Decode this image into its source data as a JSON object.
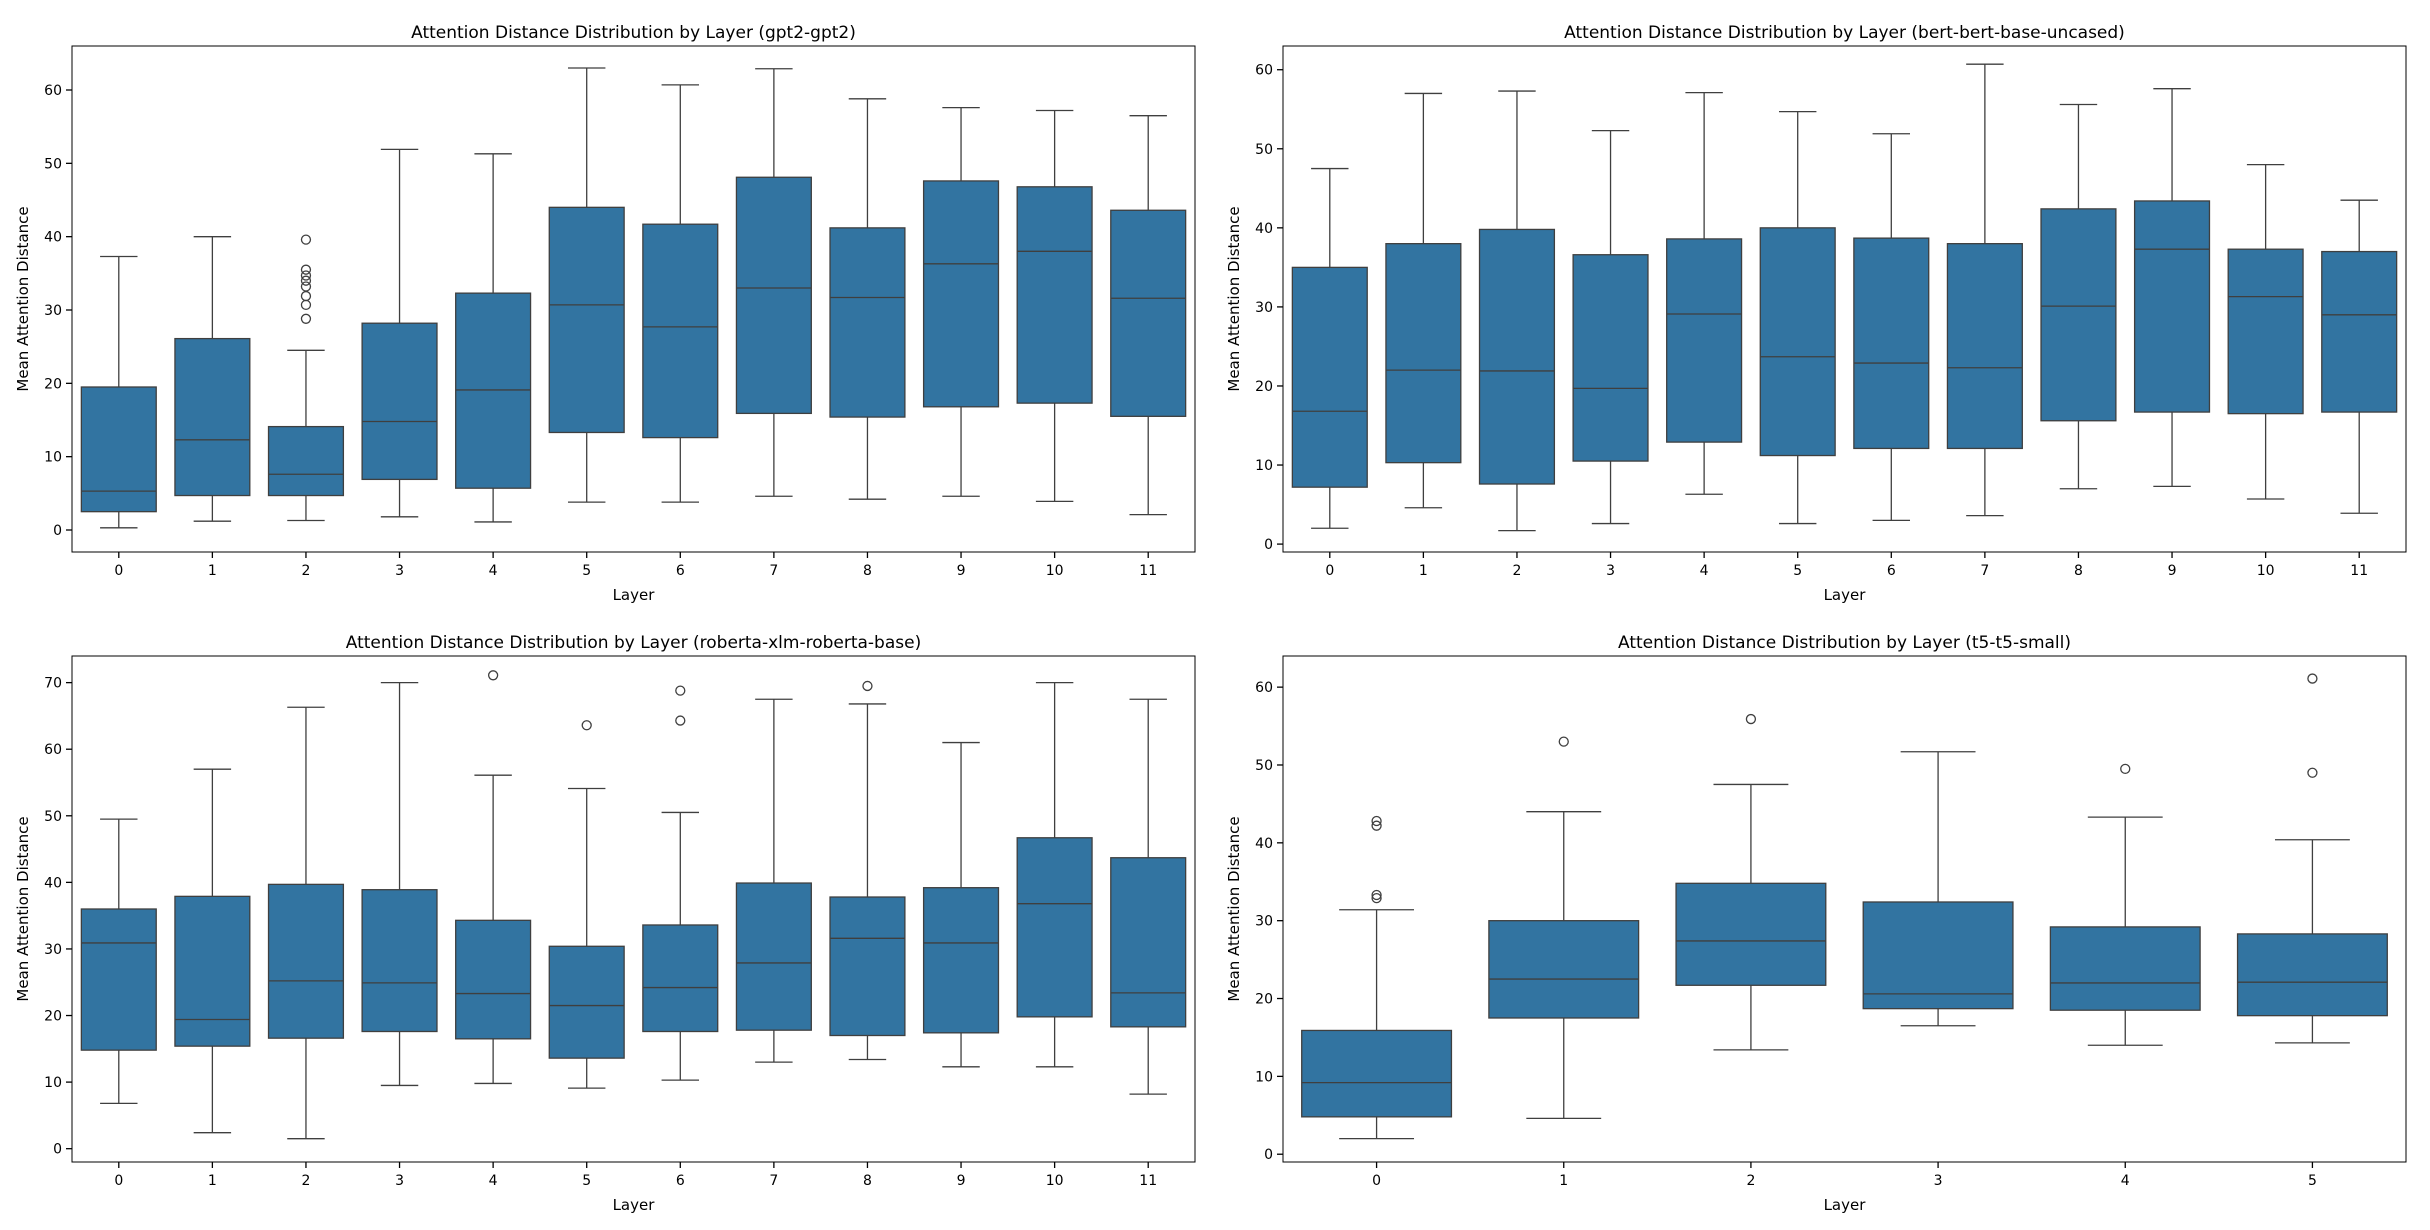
{
  "chart_data": [
    {
      "type": "box",
      "title": "Attention Distance Distribution by Layer (gpt2-gpt2)",
      "xlabel": "Layer",
      "ylabel": "Mean Attention Distance",
      "ylim": [
        -3,
        66
      ],
      "yticks": [
        0,
        10,
        20,
        30,
        40,
        50,
        60
      ],
      "categories": [
        "0",
        "1",
        "2",
        "3",
        "4",
        "5",
        "6",
        "7",
        "8",
        "9",
        "10",
        "11"
      ],
      "boxes": [
        {
          "layer": "0",
          "low": 0.3,
          "q1": 2.5,
          "median": 5.3,
          "q3": 19.5,
          "high": 37.3,
          "outliers": []
        },
        {
          "layer": "1",
          "low": 1.2,
          "q1": 4.7,
          "median": 12.3,
          "q3": 26.1,
          "high": 40.0,
          "outliers": []
        },
        {
          "layer": "2",
          "low": 1.3,
          "q1": 4.7,
          "median": 7.6,
          "q3": 14.1,
          "high": 24.5,
          "outliers": [
            39.6,
            35.5,
            34.7,
            34.0,
            33.2,
            31.9,
            30.7,
            28.8
          ]
        },
        {
          "layer": "3",
          "low": 1.8,
          "q1": 6.9,
          "median": 14.8,
          "q3": 28.2,
          "high": 51.9,
          "outliers": []
        },
        {
          "layer": "4",
          "low": 1.1,
          "q1": 5.7,
          "median": 19.1,
          "q3": 32.3,
          "high": 51.3,
          "outliers": []
        },
        {
          "layer": "5",
          "low": 3.8,
          "q1": 13.3,
          "median": 30.7,
          "q3": 44.0,
          "high": 63.0,
          "outliers": []
        },
        {
          "layer": "6",
          "low": 3.8,
          "q1": 12.6,
          "median": 27.7,
          "q3": 41.7,
          "high": 60.7,
          "outliers": []
        },
        {
          "layer": "7",
          "low": 4.6,
          "q1": 15.9,
          "median": 33.0,
          "q3": 48.1,
          "high": 62.9,
          "outliers": []
        },
        {
          "layer": "8",
          "low": 4.2,
          "q1": 15.4,
          "median": 31.7,
          "q3": 41.2,
          "high": 58.8,
          "outliers": []
        },
        {
          "layer": "9",
          "low": 4.6,
          "q1": 16.8,
          "median": 36.3,
          "q3": 47.6,
          "high": 57.6,
          "outliers": []
        },
        {
          "layer": "10",
          "low": 3.9,
          "q1": 17.3,
          "median": 38.0,
          "q3": 46.8,
          "high": 57.2,
          "outliers": []
        },
        {
          "layer": "11",
          "low": 2.1,
          "q1": 15.5,
          "median": 31.6,
          "q3": 43.6,
          "high": 56.5,
          "outliers": []
        }
      ]
    },
    {
      "type": "box",
      "title": "Attention Distance Distribution by Layer (bert-bert-base-uncased)",
      "xlabel": "Layer",
      "ylabel": "Mean Attention Distance",
      "ylim": [
        -1,
        63
      ],
      "yticks": [
        0,
        10,
        20,
        30,
        40,
        50,
        60
      ],
      "categories": [
        "0",
        "1",
        "2",
        "3",
        "4",
        "5",
        "6",
        "7",
        "8",
        "9",
        "10",
        "11"
      ],
      "boxes": [
        {
          "layer": "0",
          "low": 2.0,
          "q1": 7.2,
          "median": 16.8,
          "q3": 35.0,
          "high": 47.5,
          "outliers": []
        },
        {
          "layer": "1",
          "low": 4.6,
          "q1": 10.3,
          "median": 22.0,
          "q3": 38.0,
          "high": 57.0,
          "outliers": []
        },
        {
          "layer": "2",
          "low": 1.7,
          "q1": 7.6,
          "median": 21.9,
          "q3": 39.8,
          "high": 57.3,
          "outliers": []
        },
        {
          "layer": "3",
          "low": 2.6,
          "q1": 10.5,
          "median": 19.7,
          "q3": 36.6,
          "high": 52.3,
          "outliers": []
        },
        {
          "layer": "4",
          "low": 6.3,
          "q1": 12.9,
          "median": 29.1,
          "q3": 38.6,
          "high": 57.1,
          "outliers": []
        },
        {
          "layer": "5",
          "low": 2.6,
          "q1": 11.2,
          "median": 23.7,
          "q3": 40.0,
          "high": 54.7,
          "outliers": []
        },
        {
          "layer": "6",
          "low": 3.0,
          "q1": 12.1,
          "median": 22.9,
          "q3": 38.7,
          "high": 51.9,
          "outliers": []
        },
        {
          "layer": "7",
          "low": 3.6,
          "q1": 12.1,
          "median": 22.3,
          "q3": 38.0,
          "high": 60.7,
          "outliers": []
        },
        {
          "layer": "8",
          "low": 7.0,
          "q1": 15.6,
          "median": 30.1,
          "q3": 42.4,
          "high": 55.6,
          "outliers": []
        },
        {
          "layer": "9",
          "low": 7.3,
          "q1": 16.7,
          "median": 37.3,
          "q3": 43.4,
          "high": 57.6,
          "outliers": []
        },
        {
          "layer": "10",
          "low": 5.7,
          "q1": 16.5,
          "median": 31.3,
          "q3": 37.3,
          "high": 48.0,
          "outliers": []
        },
        {
          "layer": "11",
          "low": 3.9,
          "q1": 16.7,
          "median": 29.0,
          "q3": 37.0,
          "high": 43.5,
          "outliers": []
        }
      ]
    },
    {
      "type": "box",
      "title": "Attention Distance Distribution by Layer (roberta-xlm-roberta-base)",
      "xlabel": "Layer",
      "ylabel": "Mean Attention Distance",
      "ylim": [
        -2,
        74
      ],
      "yticks": [
        0,
        10,
        20,
        30,
        40,
        50,
        60,
        70
      ],
      "categories": [
        "0",
        "1",
        "2",
        "3",
        "4",
        "5",
        "6",
        "7",
        "8",
        "9",
        "10",
        "11"
      ],
      "boxes": [
        {
          "layer": "0",
          "low": 6.8,
          "q1": 14.8,
          "median": 30.9,
          "q3": 36.0,
          "high": 49.5,
          "outliers": []
        },
        {
          "layer": "1",
          "low": 2.4,
          "q1": 15.4,
          "median": 19.4,
          "q3": 37.9,
          "high": 57.0,
          "outliers": []
        },
        {
          "layer": "2",
          "low": 1.5,
          "q1": 16.6,
          "median": 25.2,
          "q3": 39.7,
          "high": 66.3,
          "outliers": []
        },
        {
          "layer": "3",
          "low": 9.5,
          "q1": 17.6,
          "median": 24.9,
          "q3": 38.9,
          "high": 70.0,
          "outliers": []
        },
        {
          "layer": "4",
          "low": 9.8,
          "q1": 16.5,
          "median": 23.3,
          "q3": 34.3,
          "high": 56.1,
          "outliers": [
            71.1
          ]
        },
        {
          "layer": "5",
          "low": 9.1,
          "q1": 13.6,
          "median": 21.5,
          "q3": 30.4,
          "high": 54.1,
          "outliers": [
            63.6
          ]
        },
        {
          "layer": "6",
          "low": 10.3,
          "q1": 17.6,
          "median": 24.2,
          "q3": 33.6,
          "high": 50.5,
          "outliers": [
            68.8,
            64.3
          ]
        },
        {
          "layer": "7",
          "low": 13.0,
          "q1": 17.8,
          "median": 27.9,
          "q3": 39.9,
          "high": 67.5,
          "outliers": []
        },
        {
          "layer": "8",
          "low": 13.4,
          "q1": 17.0,
          "median": 31.6,
          "q3": 37.8,
          "high": 66.8,
          "outliers": [
            69.5
          ]
        },
        {
          "layer": "9",
          "low": 12.3,
          "q1": 17.4,
          "median": 30.9,
          "q3": 39.2,
          "high": 61.0,
          "outliers": []
        },
        {
          "layer": "10",
          "low": 12.3,
          "q1": 19.8,
          "median": 36.8,
          "q3": 46.7,
          "high": 70.0,
          "outliers": []
        },
        {
          "layer": "11",
          "low": 8.2,
          "q1": 18.3,
          "median": 23.4,
          "q3": 43.7,
          "high": 67.5,
          "outliers": []
        }
      ]
    },
    {
      "type": "box",
      "title": "Attention Distance Distribution by Layer (t5-t5-small)",
      "xlabel": "Layer",
      "ylabel": "Mean Attention Distance",
      "ylim": [
        -1,
        64
      ],
      "yticks": [
        0,
        10,
        20,
        30,
        40,
        50,
        60
      ],
      "categories": [
        "0",
        "1",
        "2",
        "3",
        "4",
        "5"
      ],
      "boxes": [
        {
          "layer": "0",
          "low": 2.0,
          "q1": 4.8,
          "median": 9.2,
          "q3": 15.9,
          "high": 31.4,
          "outliers": [
            42.8,
            42.2,
            33.3,
            32.9
          ]
        },
        {
          "layer": "1",
          "low": 4.6,
          "q1": 17.5,
          "median": 22.5,
          "q3": 30.0,
          "high": 44.0,
          "outliers": [
            53.0
          ]
        },
        {
          "layer": "2",
          "low": 13.4,
          "q1": 21.7,
          "median": 27.4,
          "q3": 34.8,
          "high": 47.5,
          "outliers": [
            55.9
          ]
        },
        {
          "layer": "3",
          "low": 16.5,
          "q1": 18.7,
          "median": 20.6,
          "q3": 32.4,
          "high": 51.7,
          "outliers": []
        },
        {
          "layer": "4",
          "low": 14.0,
          "q1": 18.5,
          "median": 22.0,
          "q3": 29.2,
          "high": 43.3,
          "outliers": [
            49.5
          ]
        },
        {
          "layer": "5",
          "low": 14.3,
          "q1": 17.8,
          "median": 22.1,
          "q3": 28.3,
          "high": 40.4,
          "outliers": [
            61.1,
            49.0
          ]
        }
      ]
    }
  ]
}
